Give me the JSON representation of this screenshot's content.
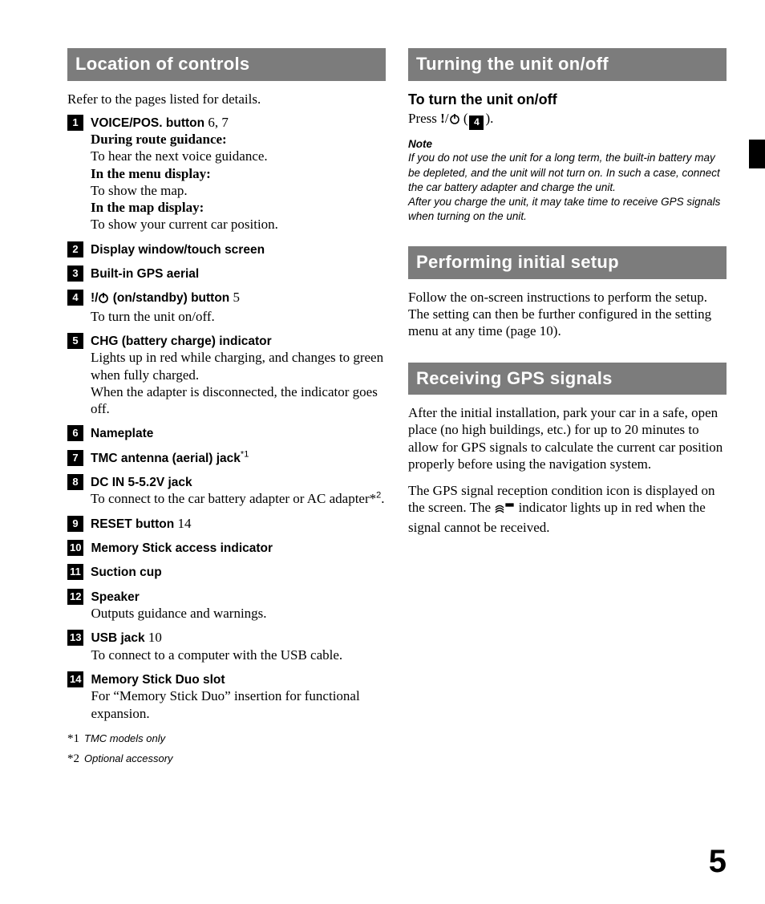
{
  "page_number": "5",
  "left": {
    "title": "Location of controls",
    "intro": "Refer to the pages listed for details.",
    "items": [
      {
        "num": "1",
        "title": "VOICE/POS. button",
        "pages": "  6, 7",
        "lines": [
          {
            "b": "During route guidance:",
            "t": "To hear the next voice guidance."
          },
          {
            "b": "In the menu display:",
            "t": "To show the map."
          },
          {
            "b": "In the map display:",
            "t": "To show your current car position."
          }
        ]
      },
      {
        "num": "2",
        "title": "Display window/touch screen"
      },
      {
        "num": "3",
        "title": "Built-in GPS aerial"
      },
      {
        "num": "4",
        "title_pre": "",
        "title_post": " (on/standby) button",
        "pages": "  5",
        "power": true,
        "lines": [
          {
            "t": "To turn the unit on/off."
          }
        ]
      },
      {
        "num": "5",
        "title": "CHG (battery charge) indicator",
        "lines": [
          {
            "t": "Lights up in red while charging, and changes to green when fully charged."
          },
          {
            "t": "When the adapter is disconnected, the indicator goes off."
          }
        ]
      },
      {
        "num": "6",
        "title": "Nameplate"
      },
      {
        "num": "7",
        "title": "TMC antenna (aerial) jack",
        "sup": "*1"
      },
      {
        "num": "8",
        "title": "DC IN 5-5.2V jack",
        "lines": [
          {
            "t": "To connect to the car battery adapter or AC adapter*",
            "sup_after": "2",
            "tail": "."
          }
        ]
      },
      {
        "num": "9",
        "title": "RESET button",
        "pages": "  14"
      },
      {
        "num": "10",
        "title": "Memory Stick access indicator"
      },
      {
        "num": "11",
        "title": "Suction cup"
      },
      {
        "num": "12",
        "title": "Speaker",
        "lines": [
          {
            "t": "Outputs guidance and warnings."
          }
        ]
      },
      {
        "num": "13",
        "title": "USB jack",
        "pages": "  10",
        "lines": [
          {
            "t": "To connect to a computer with the USB cable."
          }
        ]
      },
      {
        "num": "14",
        "title": "Memory Stick Duo slot",
        "lines": [
          {
            "t": "For “Memory Stick Duo” insertion for functional expansion."
          }
        ]
      }
    ],
    "footnotes": [
      {
        "mark": "*1",
        "text": "TMC models only"
      },
      {
        "mark": "*2",
        "text": "Optional accessory"
      }
    ]
  },
  "right": {
    "turn": {
      "title": "Turning the unit on/off",
      "sub": "To turn the unit on/off",
      "press_pre": "Press ",
      "press_mid": " (",
      "press_badge": "4",
      "press_post": ").",
      "note_label": "Note",
      "note_body": "If you do not use the unit for a long term, the built-in battery may be depleted, and the unit will not turn on. In such a case, connect the car battery adapter and charge the unit.\nAfter you charge the unit, it may take time to receive GPS signals when turning on the unit."
    },
    "setup": {
      "title": "Performing initial setup",
      "p1": "Follow the on-screen instructions to perform the setup.",
      "p2": "The setting can then be further configured in the setting menu at any time (page 10)."
    },
    "gps": {
      "title": "Receiving GPS signals",
      "p1": "After the initial installation, park your car in a safe, open place (no high buildings, etc.) for up to 20 minutes to allow for GPS signals to calculate the current car position properly before using the navigation system.",
      "p2_pre": "The GPS signal reception condition icon is displayed on the screen. The ",
      "p2_post": " indicator lights up in red when the signal cannot be received."
    }
  }
}
